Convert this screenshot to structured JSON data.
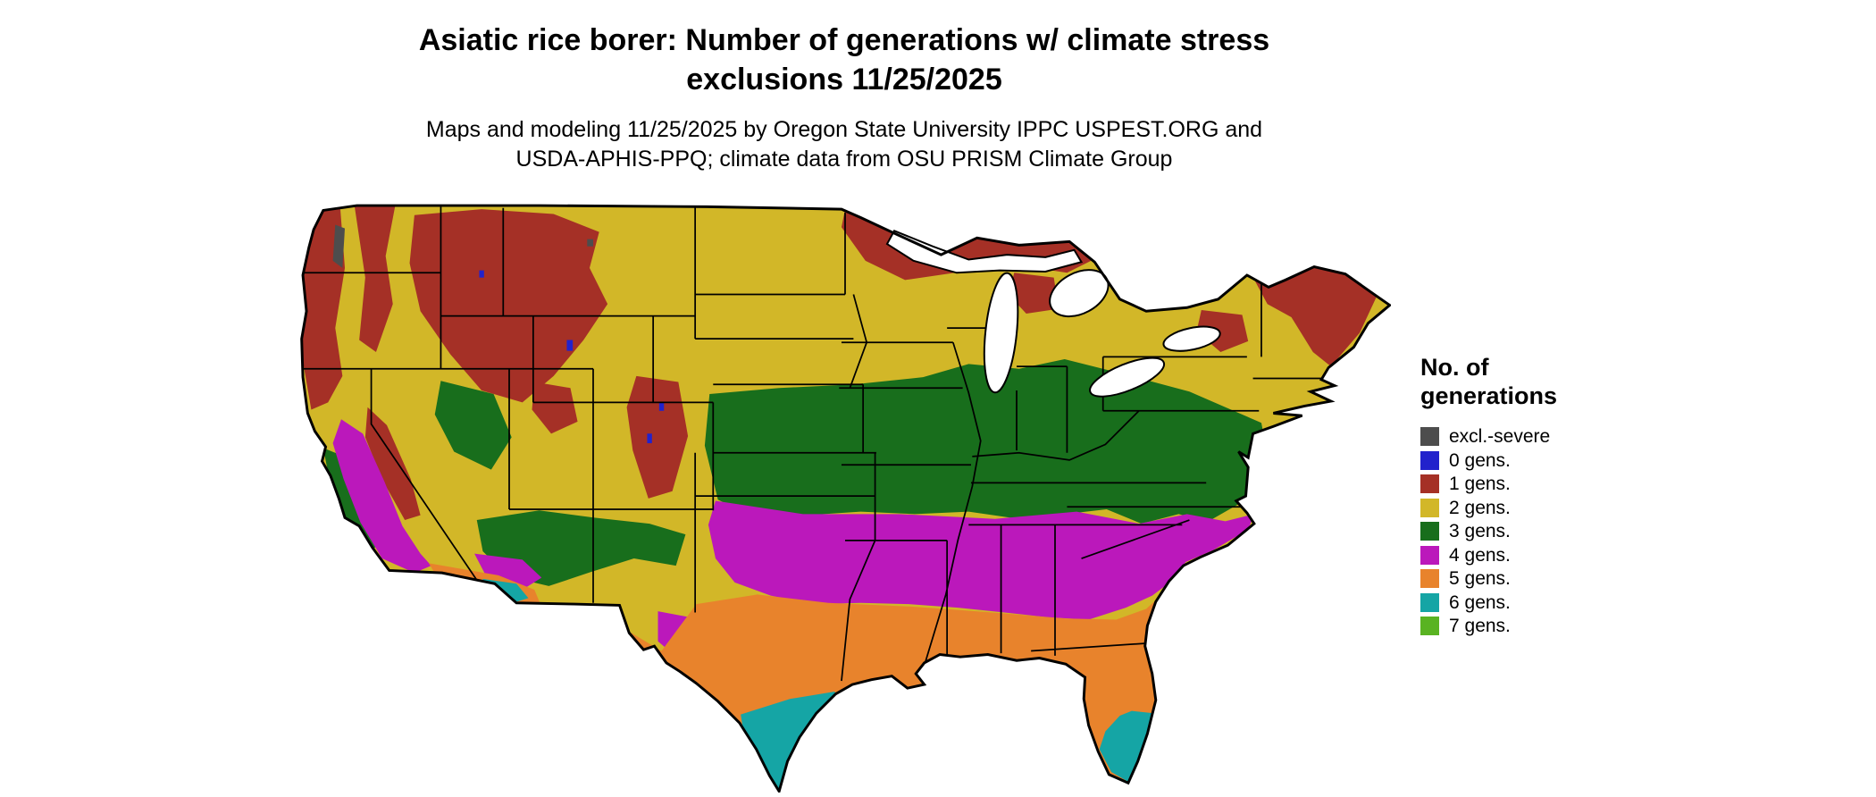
{
  "header": {
    "title_line1": "Asiatic rice borer: Number of generations w/ climate stress",
    "title_line2": "exclusions 11/25/2025",
    "subtitle_line1": "Maps and modeling 11/25/2025 by Oregon State University IPPC USPEST.ORG and",
    "subtitle_line2": "USDA-APHIS-PPQ; climate data from OSU PRISM Climate Group"
  },
  "map": {
    "region": "Contiguous United States",
    "kind": "categorical raster map of insect generations per year",
    "colors": {
      "excl": "#4d4d4d",
      "g0": "#2222cc",
      "g1": "#a53026",
      "g2": "#d2b728",
      "g3": "#186e1c",
      "g4": "#bb18bb",
      "g5": "#e8832c",
      "g6": "#15a5a5",
      "g7": "#59b322",
      "lake": "#ffffff",
      "border": "#000000"
    },
    "bands_note": "1 gen: NW coast, N Rockies, Colorado Rockies, Sierra, N Minnesota/Wisconsin/Upper Michigan, N New England; 2 gens: N plains and NE; 3 gens: central band Kansas to Virginia, SW highlands; 4 gens: southern plains to Carolinas, California valleys; 5 gens: gulf coast, Texas, Florida, SW deserts; 6 gens: S Texas, S Florida, Yuma area; 7 gens: Florida tip"
  },
  "legend": {
    "title_line1": "No. of",
    "title_line2": "generations",
    "items": [
      {
        "label": "excl.-severe",
        "color": "#4d4d4d"
      },
      {
        "label": "0 gens.",
        "color": "#2222cc"
      },
      {
        "label": "1 gens.",
        "color": "#a53026"
      },
      {
        "label": "2 gens.",
        "color": "#d2b728"
      },
      {
        "label": "3 gens.",
        "color": "#186e1c"
      },
      {
        "label": "4 gens.",
        "color": "#bb18bb"
      },
      {
        "label": "5 gens.",
        "color": "#e8832c"
      },
      {
        "label": "6 gens.",
        "color": "#15a5a5"
      },
      {
        "label": "7 gens.",
        "color": "#59b322"
      }
    ]
  }
}
